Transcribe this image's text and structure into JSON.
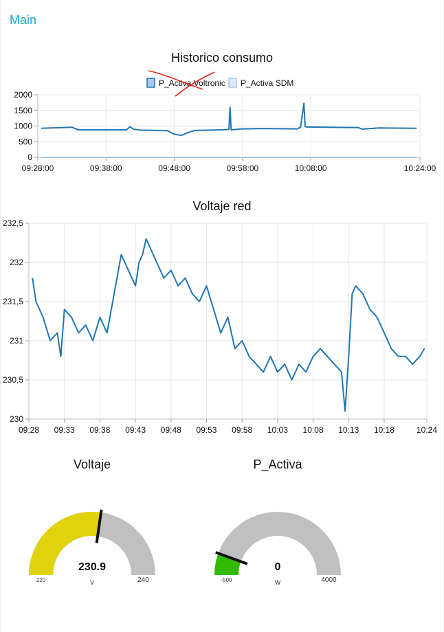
{
  "header": {
    "title": "Main"
  },
  "colors": {
    "accent": "#1ca6cf",
    "line": "#1f77b4",
    "line_light": "#aec7e8",
    "grid": "#e6e6e6",
    "gauge_yellow": "#e0d20c",
    "gauge_green": "#33bb00",
    "gauge_bg": "#c0c0c0"
  },
  "chart_data": [
    {
      "type": "line",
      "title": "Historico consumo",
      "xlabel": "",
      "ylabel": "",
      "x_ticks": [
        "09:28:00",
        "09:38:00",
        "09:48:00",
        "09:58:00",
        "10:08:00",
        "10:24:00"
      ],
      "y_ticks": [
        "2000",
        "1500",
        "1000",
        "500",
        "0"
      ],
      "ylim": [
        0,
        2000
      ],
      "grid": true,
      "legend_position": "top",
      "series": [
        {
          "name": "P_Activa Voltronic",
          "color": "#1f77b4",
          "x": [
            "09:28:30",
            "09:33:00",
            "09:34:00",
            "09:41:00",
            "09:41:30",
            "09:42:00",
            "09:43:00",
            "09:47:00",
            "09:48:00",
            "09:49:00",
            "09:50:00",
            "09:51:00",
            "09:55:00",
            "09:56:00",
            "09:56:10",
            "09:56:20",
            "09:58:00",
            "10:01:00",
            "10:06:00",
            "10:06:30",
            "10:07:00",
            "10:07:10",
            "10:07:20",
            "10:15:00",
            "10:15:30",
            "10:18:00",
            "10:23:30"
          ],
          "values": [
            930,
            960,
            880,
            880,
            980,
            900,
            870,
            850,
            740,
            700,
            790,
            860,
            880,
            890,
            1600,
            880,
            910,
            920,
            910,
            960,
            1730,
            1000,
            970,
            950,
            900,
            940,
            930
          ]
        },
        {
          "name": "P_Activa SDM",
          "color": "#aec7e8",
          "x": [
            "09:28:30",
            "10:23:30"
          ],
          "values": [
            0,
            0
          ]
        }
      ]
    },
    {
      "type": "line",
      "title": "Voltaje red",
      "xlabel": "",
      "ylabel": "",
      "x_ticks": [
        "09:28",
        "09:33",
        "09:38",
        "09:43",
        "09:48",
        "09:53",
        "09:58",
        "10:03",
        "10:08",
        "10:13",
        "10:18",
        "10:24"
      ],
      "y_ticks": [
        "232,5",
        "232",
        "231,5",
        "231",
        "230,5",
        "230"
      ],
      "ylim": [
        230,
        232.5
      ],
      "grid": true,
      "series": [
        {
          "name": "",
          "color": "#1f77b4",
          "x": [
            "09:28:30",
            "09:29:00",
            "09:30:00",
            "09:31:00",
            "09:32:00",
            "09:32:30",
            "09:33:00",
            "09:34:00",
            "09:35:00",
            "09:36:00",
            "09:37:00",
            "09:38:00",
            "09:39:00",
            "09:40:00",
            "09:41:00",
            "09:42:00",
            "09:43:00",
            "09:43:30",
            "09:44:00",
            "09:44:30",
            "09:45:00",
            "09:46:00",
            "09:47:00",
            "09:48:00",
            "09:49:00",
            "09:50:00",
            "09:51:00",
            "09:52:00",
            "09:53:00",
            "09:54:00",
            "09:55:00",
            "09:56:00",
            "09:57:00",
            "09:58:00",
            "09:59:00",
            "10:00:00",
            "10:01:00",
            "10:02:00",
            "10:03:00",
            "10:04:00",
            "10:05:00",
            "10:06:00",
            "10:07:00",
            "10:08:00",
            "10:09:00",
            "10:10:00",
            "10:11:00",
            "10:12:00",
            "10:12:30",
            "10:13:00",
            "10:13:30",
            "10:14:00",
            "10:15:00",
            "10:16:00",
            "10:17:00",
            "10:18:00",
            "10:19:00",
            "10:20:00",
            "10:21:00",
            "10:22:00",
            "10:23:00",
            "10:23:40"
          ],
          "values": [
            231.8,
            231.5,
            231.3,
            231.0,
            231.1,
            230.8,
            231.4,
            231.3,
            231.1,
            231.2,
            231.0,
            231.3,
            231.1,
            231.6,
            232.1,
            231.9,
            231.7,
            232.0,
            232.1,
            232.3,
            232.2,
            232.0,
            231.8,
            231.9,
            231.7,
            231.8,
            231.6,
            231.5,
            231.7,
            231.4,
            231.1,
            231.3,
            230.9,
            231.0,
            230.8,
            230.7,
            230.6,
            230.8,
            230.6,
            230.7,
            230.5,
            230.7,
            230.6,
            230.8,
            230.9,
            230.8,
            230.7,
            230.6,
            230.1,
            230.8,
            231.6,
            231.7,
            231.6,
            231.4,
            231.3,
            231.1,
            230.9,
            230.8,
            230.8,
            230.7,
            230.8,
            230.9
          ]
        }
      ]
    }
  ],
  "gauges": [
    {
      "id": "voltaje",
      "title": "Voltaje",
      "value": 230.9,
      "display": "230.9",
      "unit": "V",
      "min": 220,
      "max": 240,
      "min_label": "220",
      "max_label": "240",
      "color": "#e0d20c"
    },
    {
      "id": "p_activa",
      "title": "P_Activa",
      "value": 0,
      "display": "0",
      "unit": "W",
      "min": -500,
      "max": 4000,
      "min_label": "-500",
      "max_label": "4000",
      "color": "#33bb00"
    }
  ]
}
